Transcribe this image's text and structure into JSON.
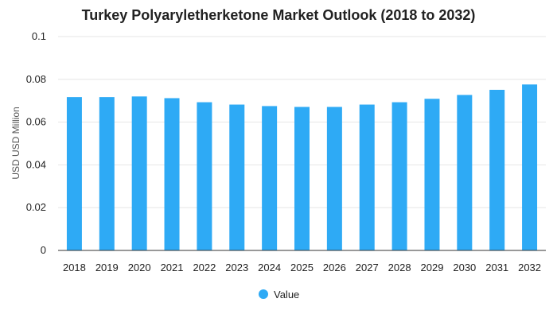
{
  "chart_data": {
    "type": "bar",
    "title": "Turkey Polyaryletherketone Market Outlook (2018 to 2032)",
    "xlabel": "",
    "ylabel": "USD USD Million",
    "categories": [
      "2018",
      "2019",
      "2020",
      "2021",
      "2022",
      "2023",
      "2024",
      "2025",
      "2026",
      "2027",
      "2028",
      "2029",
      "2030",
      "2031",
      "2032"
    ],
    "series": [
      {
        "name": "Value",
        "values": [
          0.0717,
          0.0717,
          0.072,
          0.0712,
          0.0693,
          0.0682,
          0.0675,
          0.0671,
          0.0671,
          0.0682,
          0.0693,
          0.0709,
          0.0727,
          0.0751,
          0.0776
        ],
        "color": "#2eaaf5"
      }
    ],
    "ylim": [
      0,
      0.1
    ],
    "yticks": [
      "0",
      "0.02",
      "0.04",
      "0.06",
      "0.08",
      "0.1"
    ],
    "grid": true,
    "legend": "bottom-center"
  }
}
